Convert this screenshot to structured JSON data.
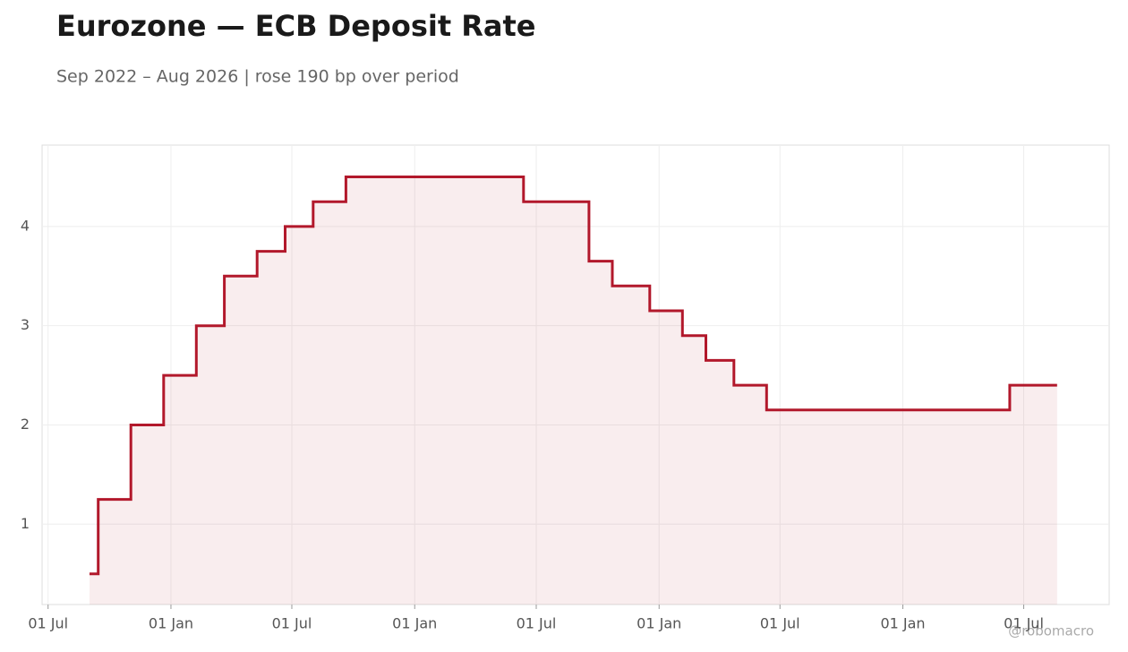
{
  "chart_data": {
    "type": "step-area",
    "title": "Eurozone — ECB Deposit Rate",
    "subtitle": "Sep 2022 – Aug 2026 | rose 190 bp over period",
    "watermark": "@robomacro",
    "x": [
      "2022-09-01",
      "2022-09-14",
      "2022-11-02",
      "2022-12-21",
      "2023-02-08",
      "2023-03-22",
      "2023-05-10",
      "2023-06-21",
      "2023-08-02",
      "2023-09-20",
      "2024-06-12",
      "2024-09-18",
      "2024-10-23",
      "2024-12-18",
      "2025-02-05",
      "2025-03-12",
      "2025-04-23",
      "2025-06-11",
      "2026-06-10",
      "2026-08-20"
    ],
    "series": [
      {
        "name": "ECB Deposit Rate",
        "color": "#b2182b",
        "values": [
          0.5,
          1.25,
          2.0,
          2.5,
          3.0,
          3.5,
          3.75,
          4.0,
          4.25,
          4.5,
          4.25,
          3.65,
          3.4,
          3.15,
          2.9,
          2.65,
          2.4,
          2.15,
          2.4,
          2.4
        ]
      }
    ],
    "xlim": [
      "2022-06-22",
      "2026-11-06"
    ],
    "xticks": [
      {
        "value": "2022-07-01",
        "label": "01 Jul"
      },
      {
        "value": "2023-01-01",
        "label": "01 Jan"
      },
      {
        "value": "2023-07-01",
        "label": "01 Jul"
      },
      {
        "value": "2024-01-01",
        "label": "01 Jan"
      },
      {
        "value": "2024-07-01",
        "label": "01 Jul"
      },
      {
        "value": "2025-01-01",
        "label": "01 Jan"
      },
      {
        "value": "2025-07-01",
        "label": "01 Jul"
      },
      {
        "value": "2026-01-01",
        "label": "01 Jan"
      },
      {
        "value": "2026-07-01",
        "label": "01 Jul"
      }
    ],
    "ylim": [
      0.19,
      4.82
    ],
    "yticks": [
      1,
      2,
      3,
      4
    ],
    "grid": true
  }
}
